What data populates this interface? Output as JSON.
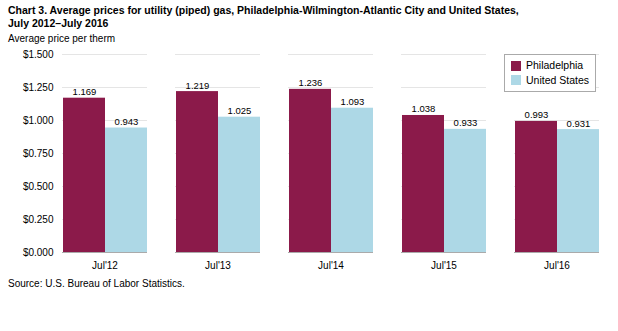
{
  "chart_data": {
    "type": "bar",
    "title": "Chart 3. Average prices for utility (piped) gas, Philadelphia-Wilmington-Atlantic City and United States,",
    "subtitle": "July 2012–July 2016",
    "ylabel": "Average price per therm",
    "source": "Source: U.S. Bureau of Labor Statistics.",
    "categories": [
      "Jul'12",
      "Jul'13",
      "Jul'14",
      "Jul'15",
      "Jul'16"
    ],
    "series": [
      {
        "name": "Philadelphia",
        "color": "#8B1A4A",
        "values": [
          1.169,
          1.219,
          1.236,
          1.038,
          0.993
        ]
      },
      {
        "name": "United States",
        "color": "#ADD8E6",
        "values": [
          0.943,
          1.025,
          1.093,
          0.933,
          0.931
        ]
      }
    ],
    "ylim": [
      0,
      1.5
    ],
    "yticks": [
      {
        "value": 0,
        "label": "$0.000"
      },
      {
        "value": 0.25,
        "label": "$0.250"
      },
      {
        "value": 0.5,
        "label": "$0.500"
      },
      {
        "value": 0.75,
        "label": "$0.750"
      },
      {
        "value": 1,
        "label": "$1.000"
      },
      {
        "value": 1.25,
        "label": "$1.250"
      },
      {
        "value": 1.5,
        "label": "$1.500"
      }
    ],
    "grid": true,
    "legend": "upper-right",
    "data_labels": true
  }
}
